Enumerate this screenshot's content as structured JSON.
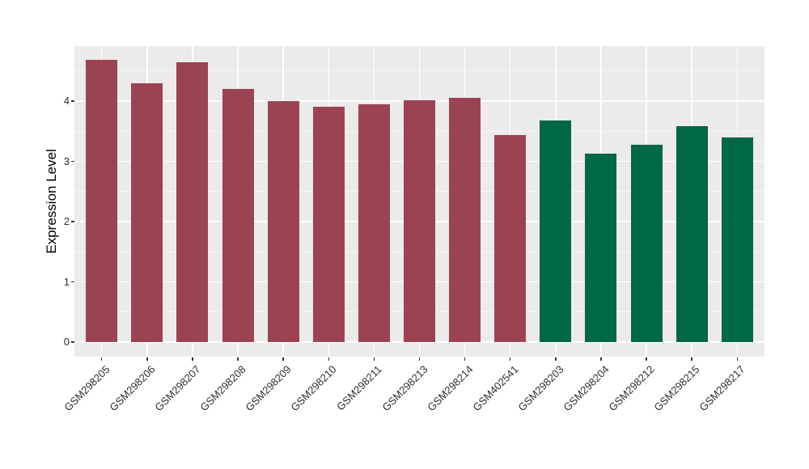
{
  "chart_data": {
    "type": "bar",
    "title": "",
    "xlabel": "",
    "ylabel": "Expression Level",
    "categories": [
      "GSM298205",
      "GSM298206",
      "GSM298207",
      "GSM298208",
      "GSM298209",
      "GSM298210",
      "GSM298211",
      "GSM298213",
      "GSM298214",
      "GSM402541",
      "GSM298203",
      "GSM298204",
      "GSM298212",
      "GSM298215",
      "GSM298217"
    ],
    "values": [
      4.68,
      4.3,
      4.65,
      4.2,
      4.0,
      3.91,
      3.95,
      4.01,
      4.06,
      3.43,
      3.68,
      3.13,
      3.27,
      3.59,
      3.4
    ],
    "bar_colors": [
      "#9C4351",
      "#9C4351",
      "#9C4351",
      "#9C4351",
      "#9C4351",
      "#9C4351",
      "#9C4351",
      "#9C4351",
      "#9C4351",
      "#9C4351",
      "#006747",
      "#006747",
      "#006747",
      "#006747",
      "#006747"
    ],
    "yticks": [
      0,
      1,
      2,
      3,
      4
    ],
    "ytick_labels": [
      "0",
      "1",
      "2",
      "3",
      "4"
    ],
    "ylim": [
      0,
      4.9
    ],
    "grid": true,
    "legend": "none",
    "x_label_angle_deg": 45,
    "colors": {
      "bar_group_left": "#9C4351",
      "bar_group_right": "#006747",
      "panel_background": "#EBEBEB",
      "gridline": "#FFFFFF",
      "tick_mark": "#333333",
      "axis_text": "#2E2E2E",
      "axis_title": "#000000",
      "figure_background": "#FFFFFF"
    }
  }
}
